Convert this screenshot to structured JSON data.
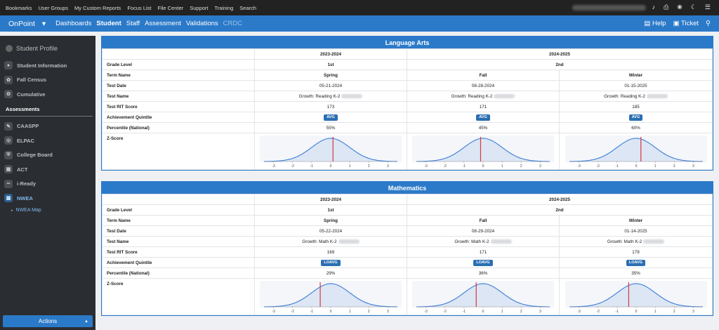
{
  "topbar": {
    "links": [
      "Bookmarks",
      "User Groups",
      "My Custom Reports",
      "Focus List",
      "File Center",
      "Support",
      "Training",
      "Search"
    ],
    "icons": [
      "bell-icon",
      "printer-icon",
      "bug-icon",
      "moon-icon",
      "hamburger-menu-icon"
    ]
  },
  "nav": {
    "brand": "OnPoint",
    "items": [
      "Dashboards",
      "Student",
      "Staff",
      "Assessment",
      "Validations",
      "CRDC"
    ],
    "active": "Student",
    "disabled": "CRDC",
    "help": "Help",
    "ticket": "Ticket"
  },
  "sidebar": {
    "title": "Student Profile",
    "top_items": [
      {
        "label": "Student Information",
        "icon": "user-icon"
      },
      {
        "label": "Fall Census",
        "icon": "leaf-icon"
      },
      {
        "label": "Cumulative",
        "icon": "gear-icon"
      }
    ],
    "assess_heading": "Assessments",
    "assess_items": [
      {
        "label": "CAASPP",
        "icon": "pencil-icon"
      },
      {
        "label": "ELPAC",
        "icon": "globe-icon"
      },
      {
        "label": "College Board",
        "icon": "shield-icon"
      },
      {
        "label": "ACT",
        "icon": "chalkboard-icon"
      },
      {
        "label": "i-Ready",
        "icon": "glasses-icon"
      },
      {
        "label": "NWEA",
        "icon": "building-icon"
      }
    ],
    "sub_item": "NWEA Map",
    "actions": "Actions"
  },
  "row_labels": {
    "grade": "Grade Level",
    "term": "Term Name",
    "date": "Test Date",
    "name": "Test Name",
    "rit": "Test RIT Score",
    "quintile": "Achievement Quintile",
    "percentile": "Percentile (National)",
    "z": "Z-Score"
  },
  "z_ticks": [
    "-3",
    "-2",
    "-1",
    "0",
    "1",
    "2",
    "3"
  ],
  "panels": [
    {
      "title": "Language Arts",
      "years": [
        "2023-2024",
        "2024-2025"
      ],
      "grades": [
        "1st",
        "2nd"
      ],
      "columns": [
        {
          "term": "Spring",
          "date": "05-21-2024",
          "test": "Growth: Reading K-2",
          "rit": "173",
          "quintile": "AVG",
          "percentile": "55%",
          "z": 0.12
        },
        {
          "term": "Fall",
          "date": "08-28-2024",
          "test": "Growth: Reading K-2",
          "rit": "171",
          "quintile": "AVG",
          "percentile": "45%",
          "z": -0.13
        },
        {
          "term": "Winter",
          "date": "01-15-2025",
          "test": "Growth: Reading K-2",
          "rit": "185",
          "quintile": "AVG",
          "percentile": "60%",
          "z": 0.25
        }
      ]
    },
    {
      "title": "Mathematics",
      "years": [
        "2023-2024",
        "2024-2025"
      ],
      "grades": [
        "1st",
        "2nd"
      ],
      "columns": [
        {
          "term": "Spring",
          "date": "05-22-2024",
          "test": "Growth: Math K-2",
          "rit": "169",
          "quintile": "LOAVG",
          "percentile": "29%",
          "z": -0.55
        },
        {
          "term": "Fall",
          "date": "08-29-2024",
          "test": "Growth: Math K-2",
          "rit": "171",
          "quintile": "LOAVG",
          "percentile": "36%",
          "z": -0.36
        },
        {
          "term": "Winter",
          "date": "01-14-2025",
          "test": "Growth: Math K-2",
          "rit": "179",
          "quintile": "LOAVG",
          "percentile": "35%",
          "z": -0.39
        }
      ]
    }
  ],
  "colors": {
    "brand_blue": "#2b7ac9",
    "curve": "#3b7dd8",
    "marker": "#d9363e",
    "fill": "#dce6f4"
  }
}
